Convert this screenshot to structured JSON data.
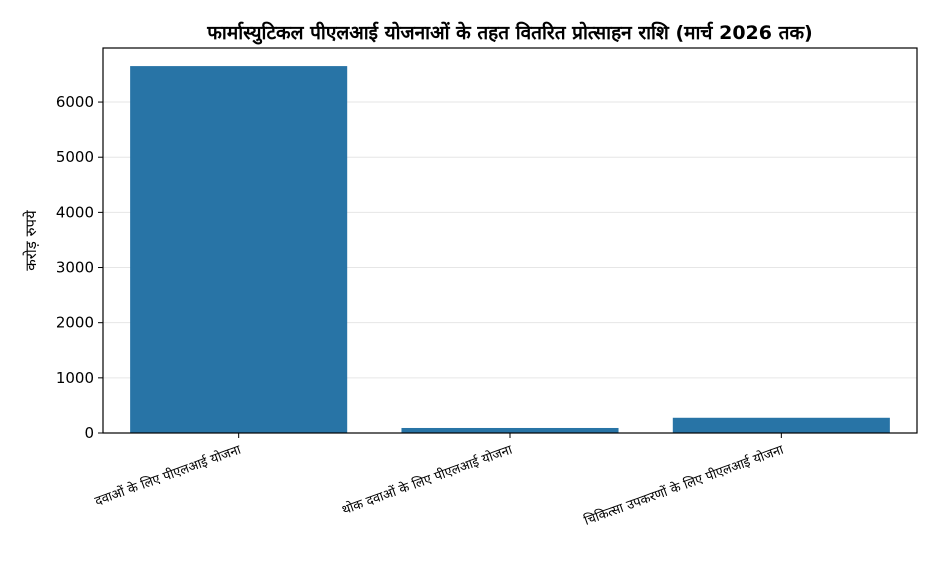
{
  "chart_data": {
    "type": "bar",
    "title": "फार्मास्युटिकल पीएलआई योजनाओं के तहत वितरित प्रोत्साहन राशि (मार्च 2026 तक)",
    "xlabel": "",
    "ylabel": "करोड़ रुपये",
    "categories": [
      "दवाओं के लिए पीएलआई योजना",
      "थोक दवाओं के लिए पीएलआई योजना",
      "चिकित्सा उपकरणों के लिए पीएलआई योजना"
    ],
    "values": [
      6652,
      91,
      276
    ],
    "ylim": [
      0,
      6980
    ],
    "yticks": [
      0,
      1000,
      2000,
      3000,
      4000,
      5000,
      6000
    ],
    "grid": "y",
    "bar_color": "#2874a6"
  }
}
